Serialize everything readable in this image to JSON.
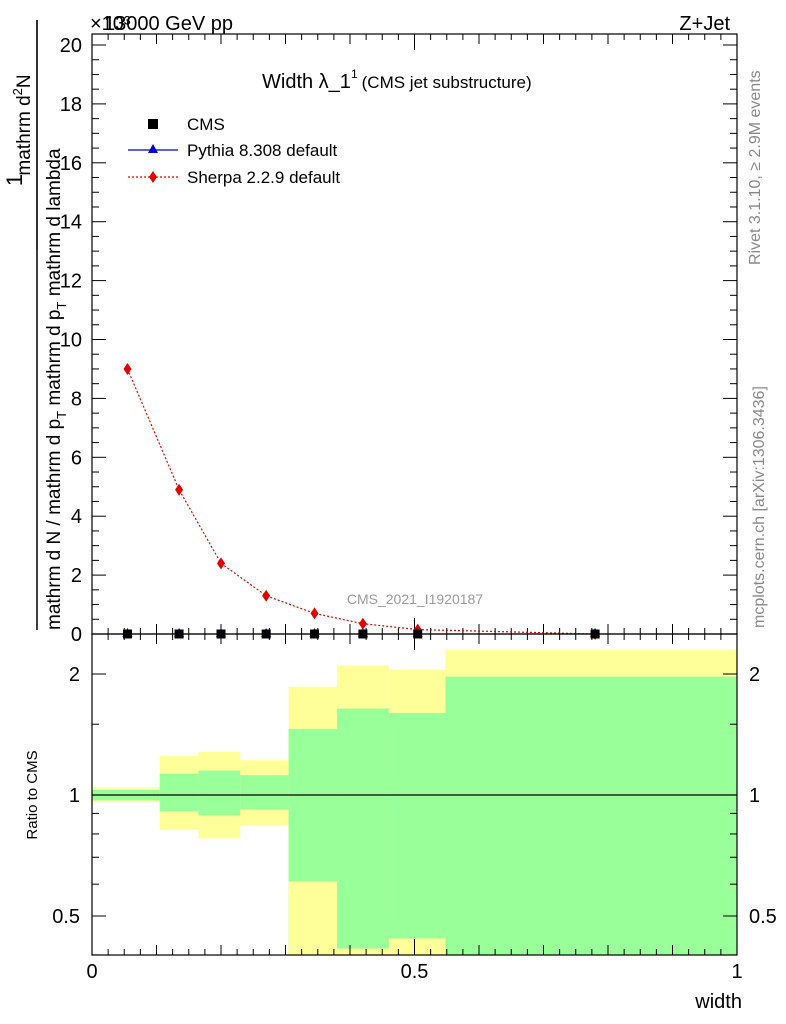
{
  "header": {
    "left": "13000 GeV pp",
    "right": "Z+Jet",
    "exponent": "×10³"
  },
  "side_text": {
    "rivet": "Rivet 3.1.10, ≥ 2.9M events",
    "mcplots": "mcplots.cern.ch [arXiv:1306.3436]"
  },
  "analysis_id": "CMS_2021_I1920187",
  "chart_data": [
    {
      "type": "line",
      "title_main": "Width λ_1",
      "title_sup": "1",
      "title_sub": "(CMS jet substructure)",
      "ylabel_numer": "1",
      "ylabel_denom": "mathrm d N / mathrm d p",
      "ylabel_denom_sub": "T",
      "ylabel_denom_rest": "mathrm d N",
      "ylabel_top": "mathrm d",
      "ylabel_top_sup": "2",
      "ylabel_top_rest": "N",
      "ylabel_bottom": "mathrm d p",
      "ylabel_bottom_sub": "T",
      "ylabel_bottom_rest": " mathrm d lambda",
      "xlim": [
        0,
        1
      ],
      "ylim": [
        0,
        20.3
      ],
      "y_scale_note": "values ×10³",
      "yticks": [
        0,
        2,
        4,
        6,
        8,
        10,
        12,
        14,
        16,
        18,
        20
      ],
      "legend_position": "top-left",
      "legend": [
        {
          "name": "CMS",
          "marker": "square",
          "color": "#000000"
        },
        {
          "name": "Pythia 8.308 default",
          "marker": "triangle",
          "color": "#0000cc",
          "line": "solid"
        },
        {
          "name": "Sherpa 2.2.9 default",
          "marker": "diamond",
          "color": "#e00000",
          "line": "dotted"
        }
      ],
      "series": [
        {
          "name": "CMS",
          "x": [
            0.055,
            0.135,
            0.2,
            0.27,
            0.345,
            0.42,
            0.505,
            0.78
          ],
          "y": [
            0.0,
            0.0,
            0.0,
            0.0,
            0.0,
            0.0,
            0.0,
            0.0
          ]
        },
        {
          "name": "Pythia 8.308 default",
          "x": [
            0.055,
            0.135,
            0.2,
            0.27,
            0.345,
            0.42,
            0.505,
            0.78
          ],
          "y": [
            0.0,
            0.0,
            0.0,
            0.0,
            0.0,
            0.0,
            0.0,
            0.0
          ]
        },
        {
          "name": "Sherpa 2.2.9 default",
          "x": [
            0.055,
            0.135,
            0.2,
            0.27,
            0.345,
            0.42,
            0.505,
            0.78
          ],
          "y": [
            9.0,
            4.9,
            2.4,
            1.3,
            0.7,
            0.35,
            0.15,
            0.0
          ]
        }
      ]
    },
    {
      "type": "area",
      "ylabel": "Ratio to CMS",
      "xlabel": "width",
      "xlim": [
        0,
        1
      ],
      "ylim": [
        0.38,
        2.3
      ],
      "y_scale": "log",
      "yticks": [
        0.5,
        1,
        2
      ],
      "xticks": [
        0,
        0.5,
        1
      ],
      "reference_line": 1,
      "bins": [
        {
          "lo": 0.0,
          "hi": 0.105,
          "green": [
            0.97,
            1.03
          ],
          "yellow": [
            0.96,
            1.045
          ]
        },
        {
          "lo": 0.105,
          "hi": 0.165,
          "green": [
            0.91,
            1.13
          ],
          "yellow": [
            0.82,
            1.25
          ]
        },
        {
          "lo": 0.165,
          "hi": 0.23,
          "green": [
            0.89,
            1.15
          ],
          "yellow": [
            0.78,
            1.28
          ]
        },
        {
          "lo": 0.23,
          "hi": 0.305,
          "green": [
            0.92,
            1.12
          ],
          "yellow": [
            0.84,
            1.22
          ]
        },
        {
          "lo": 0.305,
          "hi": 0.38,
          "green": [
            0.4,
            1.46
          ],
          "yellow": [
            0.4,
            1.86
          ]
        },
        {
          "lo": 0.38,
          "hi": 0.46,
          "green": [
            0.4,
            1.64
          ],
          "yellow": [
            0.4,
            2.1
          ]
        },
        {
          "lo": 0.46,
          "hi": 0.548,
          "green": [
            0.4,
            1.6
          ],
          "yellow": [
            0.4,
            2.05
          ]
        },
        {
          "lo": 0.548,
          "hi": 1.0,
          "green": [
            0.4,
            1.97
          ],
          "yellow": [
            0.4,
            2.3
          ]
        }
      ],
      "yellow_low_notch": [
        {
          "lo": 0.305,
          "hi": 0.38,
          "value": 0.61
        },
        {
          "lo": 0.38,
          "hi": 0.46,
          "value": 0.415
        },
        {
          "lo": 0.46,
          "hi": 0.548,
          "value": 0.44
        }
      ],
      "colors": {
        "green": "#99ff99",
        "yellow": "#ffff99"
      }
    }
  ]
}
